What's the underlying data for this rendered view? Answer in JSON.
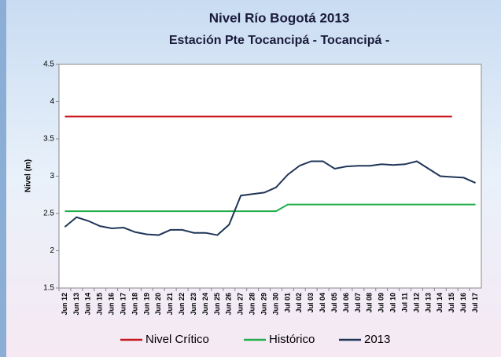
{
  "chart_data": {
    "type": "line",
    "title": "Nivel Río Bogotá 2013",
    "subtitle": "Estación Pte Tocancipá - Tocancipá -",
    "y_label": "Nivel (m)",
    "categories": [
      "Jun 12",
      "Jun 13",
      "Jun 14",
      "Jun 15",
      "Jun 16",
      "Jun 17",
      "Jun 18",
      "Jun 19",
      "Jun 20",
      "Jun 21",
      "Jun 22",
      "Jun 23",
      "Jun 24",
      "Jun 25",
      "Jun 26",
      "Jun 27",
      "Jun 28",
      "Jun 29",
      "Jun 30",
      "Jul 01",
      "Jul 02",
      "Jul 03",
      "Jul 04",
      "Jul 05",
      "Jul 06",
      "Jul 07",
      "Jul 08",
      "Jul 09",
      "Jul 10",
      "Jul 11",
      "Jul 12",
      "Jul 13",
      "Jul 14",
      "Jul 15",
      "Jul 16",
      "Jul 17"
    ],
    "series": [
      {
        "name": "Nivel Crítico",
        "color": "#c8161d",
        "values": [
          3.8,
          3.8,
          3.8,
          3.8,
          3.8,
          3.8,
          3.8,
          3.8,
          3.8,
          3.8,
          3.8,
          3.8,
          3.8,
          3.8,
          3.8,
          3.8,
          3.8,
          3.8,
          3.8,
          3.8,
          3.8,
          3.8,
          3.8,
          3.8,
          3.8,
          3.8,
          3.8,
          3.8,
          3.8,
          3.8,
          3.8,
          3.8,
          3.8,
          3.8,
          null,
          null
        ]
      },
      {
        "name": "Histórico",
        "color": "#22ad4b",
        "values": [
          2.53,
          2.53,
          2.53,
          2.53,
          2.53,
          2.53,
          2.53,
          2.53,
          2.53,
          2.53,
          2.53,
          2.53,
          2.53,
          2.53,
          2.53,
          2.53,
          2.53,
          2.53,
          2.53,
          2.62,
          2.62,
          2.62,
          2.62,
          2.62,
          2.62,
          2.62,
          2.62,
          2.62,
          2.62,
          2.62,
          2.62,
          2.62,
          2.62,
          2.62,
          2.62,
          2.62
        ]
      },
      {
        "name": "2013",
        "color": "#1f3658",
        "values": [
          2.32,
          2.45,
          2.4,
          2.33,
          2.3,
          2.31,
          2.25,
          2.22,
          2.21,
          2.28,
          2.28,
          2.24,
          2.24,
          2.21,
          2.35,
          2.74,
          2.76,
          2.78,
          2.85,
          3.02,
          3.14,
          3.2,
          3.2,
          3.1,
          3.13,
          3.14,
          3.14,
          3.16,
          3.15,
          3.16,
          3.2,
          3.1,
          3.0,
          2.99,
          2.98,
          2.91
        ]
      }
    ],
    "ylim": [
      1.5,
      4.5
    ],
    "yticks": [
      4.5,
      4,
      3.5,
      3,
      2.5,
      2,
      1.5
    ],
    "grid": false,
    "legend": "bottom"
  }
}
